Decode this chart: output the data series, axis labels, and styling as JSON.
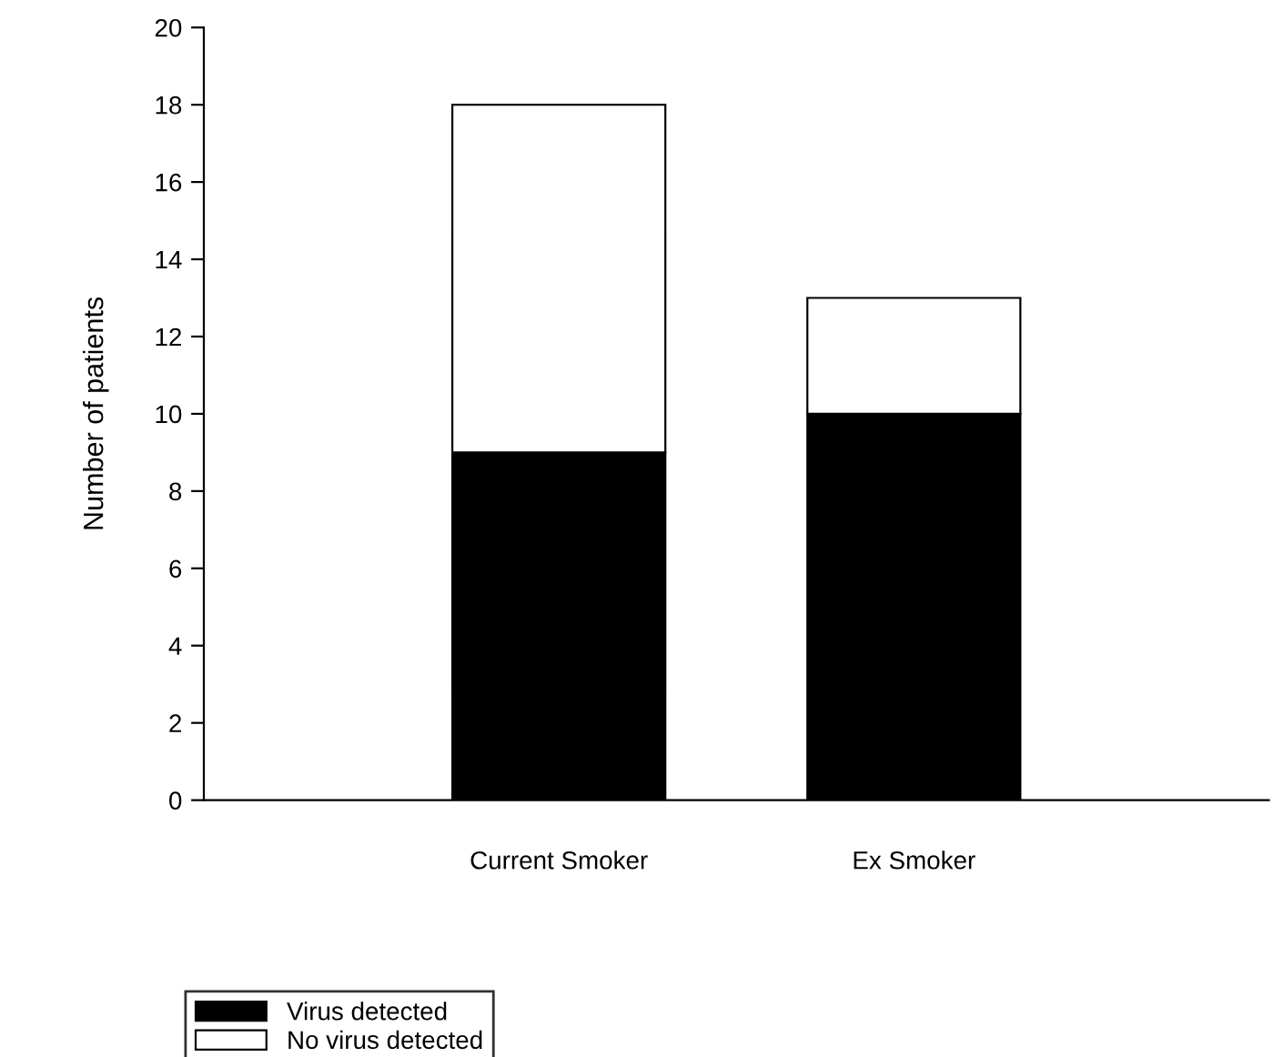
{
  "chart_data": {
    "type": "bar",
    "stacked": true,
    "ylabel": "Number of patients",
    "categories": [
      "Current Smoker",
      "Ex Smoker"
    ],
    "series": [
      {
        "name": "Virus detected",
        "color": "#000000",
        "values": [
          9,
          10
        ]
      },
      {
        "name": "No virus detected",
        "color": "#ffffff",
        "values": [
          9,
          3
        ]
      }
    ],
    "ylim": [
      0,
      20
    ],
    "yticks": [
      0,
      2,
      4,
      6,
      8,
      10,
      12,
      14,
      16,
      18,
      20
    ],
    "grid": false,
    "legend": "bottom left"
  }
}
